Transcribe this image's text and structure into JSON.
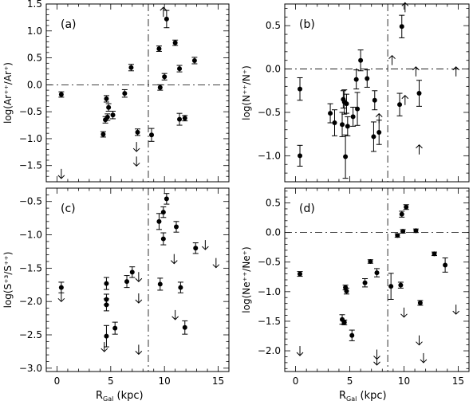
{
  "chart_data": [
    {
      "type": "scatter",
      "panel_label": "(a)",
      "ylabel": "log(Ar⁺⁺/Ar⁺)",
      "xlabel": "",
      "xlim": [
        -1,
        16
      ],
      "ylim": [
        -1.8,
        1.5
      ],
      "xticks": [
        0,
        5,
        10,
        15
      ],
      "xticklabels": [
        "",
        "",
        "",
        ""
      ],
      "yticks": [
        1.5,
        1.0,
        0.5,
        0.0,
        -0.5,
        -1.0,
        -1.5
      ],
      "yticklabels": [
        "1.5",
        "1.0",
        "0.5",
        "0.0",
        "−0.5",
        "−1.0",
        "−1.5"
      ],
      "refline_x": 8.5,
      "refline_y": 0.0,
      "points": [
        {
          "x": 0.4,
          "y": -0.18,
          "err": 0.05
        },
        {
          "x": 4.3,
          "y": -0.92,
          "err": 0.05
        },
        {
          "x": 4.5,
          "y": -0.65,
          "err": 0.06
        },
        {
          "x": 4.6,
          "y": -0.26,
          "err": 0.06
        },
        {
          "x": 4.7,
          "y": -0.6,
          "err": 0.06
        },
        {
          "x": 4.8,
          "y": -0.42,
          "err": 0.07
        },
        {
          "x": 5.2,
          "y": -0.56,
          "err": 0.07
        },
        {
          "x": 6.3,
          "y": -0.16,
          "err": 0.07
        },
        {
          "x": 6.9,
          "y": 0.32,
          "err": 0.06
        },
        {
          "x": 7.5,
          "y": -0.88,
          "err": 0.06
        },
        {
          "x": 8.8,
          "y": -0.93,
          "err": 0.12
        },
        {
          "x": 9.5,
          "y": 0.67,
          "err": 0.05
        },
        {
          "x": 9.6,
          "y": -0.05,
          "err": 0.05
        },
        {
          "x": 10.0,
          "y": 0.15,
          "err": 0.06
        },
        {
          "x": 10.2,
          "y": 1.22,
          "err": 0.16
        },
        {
          "x": 11.0,
          "y": 0.78,
          "err": 0.05
        },
        {
          "x": 11.4,
          "y": 0.3,
          "err": 0.06
        },
        {
          "x": 11.4,
          "y": -0.64,
          "err": 0.11
        },
        {
          "x": 11.9,
          "y": -0.62,
          "err": 0.05
        },
        {
          "x": 12.8,
          "y": 0.45,
          "err": 0.06
        }
      ],
      "limits": [
        {
          "x": 0.4,
          "y": -1.65,
          "dir": "down"
        },
        {
          "x": 7.4,
          "y": -1.15,
          "dir": "down"
        },
        {
          "x": 7.4,
          "y": -1.42,
          "dir": "down"
        },
        {
          "x": 9.9,
          "y": 1.35,
          "dir": "up"
        }
      ]
    },
    {
      "type": "scatter",
      "panel_label": "(b)",
      "ylabel": "log(N⁺⁺/N⁺)",
      "xlabel": "",
      "xlim": [
        -1,
        16
      ],
      "ylim": [
        -1.3,
        0.75
      ],
      "xticks": [
        0,
        5,
        10,
        15
      ],
      "xticklabels": [
        "",
        "",
        "",
        ""
      ],
      "yticks": [
        0.5,
        0.0,
        -0.5,
        -1.0
      ],
      "yticklabels": [
        "0.5",
        "0.0",
        "−0.5",
        "−1.0"
      ],
      "refline_x": 8.5,
      "refline_y": 0.0,
      "points": [
        {
          "x": 0.4,
          "y": -0.23,
          "err": 0.13
        },
        {
          "x": 0.4,
          "y": -1.0,
          "err": 0.12
        },
        {
          "x": 3.2,
          "y": -0.51,
          "err": 0.11
        },
        {
          "x": 3.6,
          "y": -0.62,
          "err": 0.15
        },
        {
          "x": 4.3,
          "y": -0.64,
          "err": 0.14
        },
        {
          "x": 4.4,
          "y": -0.35,
          "err": 0.1
        },
        {
          "x": 4.5,
          "y": -0.38,
          "err": 0.14
        },
        {
          "x": 4.6,
          "y": -1.01,
          "err": 0.25
        },
        {
          "x": 4.7,
          "y": -0.4,
          "err": 0.11
        },
        {
          "x": 4.8,
          "y": -0.66,
          "err": 0.11
        },
        {
          "x": 5.3,
          "y": -0.55,
          "err": 0.11
        },
        {
          "x": 5.6,
          "y": -0.12,
          "err": 0.11
        },
        {
          "x": 5.7,
          "y": -0.46,
          "err": 0.19
        },
        {
          "x": 6.0,
          "y": 0.1,
          "err": 0.12
        },
        {
          "x": 6.6,
          "y": -0.11,
          "err": 0.1
        },
        {
          "x": 7.2,
          "y": -0.78,
          "err": 0.17
        },
        {
          "x": 7.3,
          "y": -0.36,
          "err": 0.11
        },
        {
          "x": 7.7,
          "y": -0.73,
          "err": 0.14
        },
        {
          "x": 9.6,
          "y": -0.41,
          "err": 0.13
        },
        {
          "x": 9.8,
          "y": 0.49,
          "err": 0.13
        },
        {
          "x": 11.4,
          "y": -0.28,
          "err": 0.15
        }
      ],
      "limits": [
        {
          "x": 7.7,
          "y": -0.57,
          "dir": "up"
        },
        {
          "x": 8.9,
          "y": 0.1,
          "dir": "up"
        },
        {
          "x": 10.1,
          "y": 0.71,
          "dir": "up"
        },
        {
          "x": 10.1,
          "y": -0.36,
          "dir": "up"
        },
        {
          "x": 11.1,
          "y": -0.03,
          "dir": "up"
        },
        {
          "x": 11.4,
          "y": -0.93,
          "dir": "up"
        },
        {
          "x": 14.8,
          "y": -0.03,
          "dir": "up"
        }
      ]
    },
    {
      "type": "scatter",
      "panel_label": "(c)",
      "ylabel": "log(S⁺³/S⁺⁺)",
      "xlabel": "",
      "xlim": [
        -1,
        16
      ],
      "ylim": [
        -3.05,
        -0.3
      ],
      "xticks": [
        0,
        5,
        10,
        15
      ],
      "xticklabels": [
        "0",
        "5",
        "10",
        "15"
      ],
      "yticks": [
        -0.5,
        -1.0,
        -1.5,
        -2.0,
        -2.5,
        -3.0
      ],
      "yticklabels": [
        "−0.5",
        "−1.0",
        "−1.5",
        "−2.0",
        "−2.5",
        "−3.0"
      ],
      "refline_x": 8.5,
      "refline_y": null,
      "points": [
        {
          "x": 0.4,
          "y": -1.79,
          "err": 0.08
        },
        {
          "x": 4.6,
          "y": -1.73,
          "err": 0.09
        },
        {
          "x": 4.6,
          "y": -1.97,
          "err": 0.08
        },
        {
          "x": 4.6,
          "y": -2.05,
          "err": 0.09
        },
        {
          "x": 4.6,
          "y": -2.52,
          "err": 0.16
        },
        {
          "x": 5.4,
          "y": -2.4,
          "err": 0.09
        },
        {
          "x": 6.5,
          "y": -1.7,
          "err": 0.09
        },
        {
          "x": 7.0,
          "y": -1.56,
          "err": 0.08
        },
        {
          "x": 9.5,
          "y": -0.8,
          "err": 0.12
        },
        {
          "x": 9.6,
          "y": -1.74,
          "err": 0.09
        },
        {
          "x": 9.9,
          "y": -0.66,
          "err": 0.08
        },
        {
          "x": 9.9,
          "y": -1.06,
          "err": 0.09
        },
        {
          "x": 10.2,
          "y": -0.46,
          "err": 0.08
        },
        {
          "x": 11.1,
          "y": -0.88,
          "err": 0.08
        },
        {
          "x": 11.5,
          "y": -1.79,
          "err": 0.08
        },
        {
          "x": 11.9,
          "y": -2.39,
          "err": 0.1
        },
        {
          "x": 12.9,
          "y": -1.2,
          "err": 0.08
        }
      ],
      "limits": [
        {
          "x": 0.4,
          "y": -1.93,
          "dir": "down"
        },
        {
          "x": 4.4,
          "y": -2.68,
          "dir": "down"
        },
        {
          "x": 7.6,
          "y": -1.63,
          "dir": "down"
        },
        {
          "x": 7.6,
          "y": -1.95,
          "dir": "down"
        },
        {
          "x": 7.6,
          "y": -2.72,
          "dir": "down"
        },
        {
          "x": 10.9,
          "y": -1.36,
          "dir": "down"
        },
        {
          "x": 11.0,
          "y": -2.2,
          "dir": "down"
        },
        {
          "x": 13.8,
          "y": -1.15,
          "dir": "down"
        },
        {
          "x": 14.8,
          "y": -1.42,
          "dir": "down"
        }
      ]
    },
    {
      "type": "scatter",
      "panel_label": "(d)",
      "ylabel": "log(Ne⁺⁺/Ne⁺)",
      "xlabel": "",
      "xlim": [
        -1,
        16
      ],
      "ylim": [
        -2.35,
        0.75
      ],
      "xticks": [
        0,
        5,
        10,
        15
      ],
      "xticklabels": [
        "0",
        "5",
        "10",
        "15"
      ],
      "yticks": [
        0.5,
        0.0,
        -0.5,
        -1.0,
        -1.5,
        -2.0
      ],
      "yticklabels": [
        "0.5",
        "0.0",
        "−0.5",
        "−1.0",
        "−1.5",
        "−2.0"
      ],
      "refline_x": 8.5,
      "refline_y": 0.0,
      "points": [
        {
          "x": 0.4,
          "y": -0.7,
          "err": 0.04
        },
        {
          "x": 4.3,
          "y": -1.47,
          "err": 0.08
        },
        {
          "x": 4.5,
          "y": -1.52,
          "err": 0.04
        },
        {
          "x": 4.6,
          "y": -0.93,
          "err": 0.04
        },
        {
          "x": 4.7,
          "y": -0.99,
          "err": 0.05
        },
        {
          "x": 5.2,
          "y": -1.74,
          "err": 0.09
        },
        {
          "x": 6.4,
          "y": -0.85,
          "err": 0.07
        },
        {
          "x": 6.9,
          "y": -0.49,
          "err": 0.03
        },
        {
          "x": 7.5,
          "y": -0.68,
          "err": 0.07
        },
        {
          "x": 8.8,
          "y": -0.91,
          "err": 0.22
        },
        {
          "x": 9.4,
          "y": -0.05,
          "err": 0.03
        },
        {
          "x": 9.7,
          "y": -0.89,
          "err": 0.05
        },
        {
          "x": 9.8,
          "y": 0.31,
          "err": 0.05
        },
        {
          "x": 9.9,
          "y": 0.02,
          "err": 0.03
        },
        {
          "x": 10.2,
          "y": 0.43,
          "err": 0.04
        },
        {
          "x": 11.1,
          "y": 0.03,
          "err": 0.03
        },
        {
          "x": 11.5,
          "y": -1.19,
          "err": 0.04
        },
        {
          "x": 12.8,
          "y": -0.36,
          "err": 0.03
        },
        {
          "x": 13.8,
          "y": -0.55,
          "err": 0.12
        }
      ],
      "limits": [
        {
          "x": 0.4,
          "y": -2.0,
          "dir": "down"
        },
        {
          "x": 7.5,
          "y": -2.06,
          "dir": "down"
        },
        {
          "x": 7.5,
          "y": -2.16,
          "dir": "down"
        },
        {
          "x": 10.0,
          "y": -1.35,
          "dir": "down"
        },
        {
          "x": 11.4,
          "y": -1.82,
          "dir": "down"
        },
        {
          "x": 11.8,
          "y": -2.12,
          "dir": "down"
        },
        {
          "x": 14.8,
          "y": -1.3,
          "dir": "down"
        }
      ]
    }
  ],
  "xaxis_title": {
    "left": {
      "main": "R",
      "sub": "Gal",
      "unit": " (kpc)"
    },
    "right": {
      "main": "R",
      "sub": "Gal",
      "unit": " (kpc)"
    }
  }
}
